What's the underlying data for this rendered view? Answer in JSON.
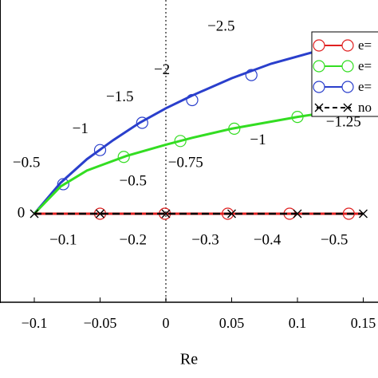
{
  "chart_data": {
    "type": "line",
    "xlabel": "Re",
    "ylabel": "",
    "xlim": [
      -0.12,
      0.17
    ],
    "xticks": [
      {
        "value": -0.1,
        "label": "-0.1"
      },
      {
        "value": -0.05,
        "label": "-0.05"
      },
      {
        "value": 0,
        "label": "0"
      },
      {
        "value": 0.05,
        "label": "0.05"
      },
      {
        "value": 0.1,
        "label": "0.1"
      },
      {
        "value": 0.15,
        "label": "0.15"
      }
    ],
    "series": [
      {
        "name": "e=",
        "color": "#e02020",
        "marker": "circle",
        "points": [
          [
            -0.1,
            0
          ],
          [
            -0.05,
            0
          ],
          [
            0,
            0
          ],
          [
            0.05,
            0
          ],
          [
            0.1,
            0
          ],
          [
            0.15,
            0
          ]
        ],
        "markers": [
          [
            -0.05,
            0
          ],
          [
            -0.0008,
            0
          ],
          [
            0.047,
            0
          ],
          [
            0.094,
            0
          ],
          [
            0.139,
            0
          ]
        ]
      },
      {
        "name": "e=",
        "color": "#33dd22",
        "marker": "circle",
        "points": [
          [
            -0.1,
            0
          ],
          [
            -0.08,
            0.6
          ],
          [
            -0.06,
            0.95
          ],
          [
            -0.03,
            1.27
          ],
          [
            0,
            1.52
          ],
          [
            0.02,
            1.67
          ],
          [
            0.05,
            1.87
          ],
          [
            0.1,
            2.13
          ],
          [
            0.135,
            2.28
          ]
        ],
        "markers": [
          [
            -0.032,
            1.25
          ],
          [
            0.011,
            1.6
          ],
          [
            0.052,
            1.87
          ],
          [
            0.1,
            2.13
          ]
        ]
      },
      {
        "name": "e=",
        "color": "#2a3fcc",
        "marker": "circle",
        "points": [
          [
            -0.1,
            0
          ],
          [
            -0.08,
            0.68
          ],
          [
            -0.06,
            1.2
          ],
          [
            -0.04,
            1.62
          ],
          [
            -0.02,
            2.0
          ],
          [
            0,
            2.32
          ],
          [
            0.02,
            2.6
          ],
          [
            0.05,
            2.98
          ],
          [
            0.08,
            3.3
          ],
          [
            0.12,
            3.62
          ],
          [
            0.135,
            3.72
          ]
        ],
        "markers": [
          [
            -0.078,
            0.65
          ],
          [
            -0.05,
            1.4
          ],
          [
            -0.018,
            2.0
          ],
          [
            0.02,
            2.5
          ],
          [
            0.065,
            3.05
          ]
        ]
      },
      {
        "name": "no",
        "color": "#000000",
        "marker": "x",
        "dashed": true,
        "points": [
          [
            -0.1,
            0
          ],
          [
            0.15,
            0
          ]
        ],
        "markers": [
          [
            -0.1,
            0
          ],
          [
            -0.05,
            0
          ],
          [
            0,
            0
          ],
          [
            0.05,
            0
          ],
          [
            0.1,
            0
          ],
          [
            0.15,
            0
          ]
        ]
      }
    ],
    "annotations": [
      {
        "text": "0",
        "x": -0.11,
        "y": 0
      },
      {
        "text": "-0.5",
        "x": -0.106,
        "y": 1.1
      },
      {
        "text": "-1",
        "x": -0.065,
        "y": 1.85
      },
      {
        "text": "-1.5",
        "x": -0.035,
        "y": 2.55
      },
      {
        "text": "-2",
        "x": -0.003,
        "y": 3.15
      },
      {
        "text": "-2.5",
        "x": 0.042,
        "y": 4.1
      },
      {
        "text": "-0.5",
        "x": -0.025,
        "y": 0.7
      },
      {
        "text": "-0.75",
        "x": 0.015,
        "y": 1.1
      },
      {
        "text": "-1",
        "x": 0.07,
        "y": 1.6
      },
      {
        "text": "-1.25",
        "x": 0.135,
        "y": 2.0
      },
      {
        "text": "-0.1",
        "x": -0.078,
        "y": -0.6
      },
      {
        "text": "-0.2",
        "x": -0.025,
        "y": -0.6
      },
      {
        "text": "-0.3",
        "x": 0.03,
        "y": -0.6
      },
      {
        "text": "-0.4",
        "x": 0.077,
        "y": -0.6
      },
      {
        "text": "-0.5",
        "x": 0.128,
        "y": -0.6
      }
    ]
  }
}
